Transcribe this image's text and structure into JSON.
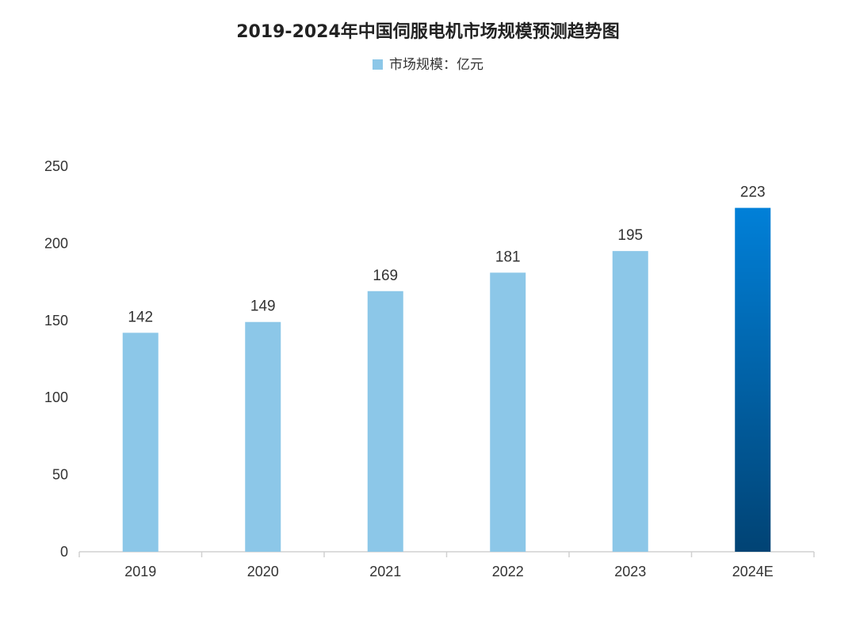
{
  "chart_data": {
    "type": "bar",
    "title": "2019-2024年中国伺服电机市场规模预测趋势图",
    "legend": [
      {
        "name": "市场规模：亿元",
        "color": "#8cc7e8"
      }
    ],
    "legend_position": "top",
    "categories": [
      "2019",
      "2020",
      "2021",
      "2022",
      "2023",
      "2024E"
    ],
    "series": [
      {
        "name": "市场规模：亿元",
        "values": [
          142,
          149,
          169,
          181,
          195,
          223
        ]
      }
    ],
    "data_labels": [
      "142",
      "149",
      "169",
      "181",
      "195",
      "223"
    ],
    "ylim": [
      0,
      250
    ],
    "yticks": [
      "0",
      "50",
      "100",
      "150",
      "200",
      "250"
    ],
    "grid": false,
    "xlabel": "",
    "ylabel": "",
    "colors": {
      "bar": "#8cc7e8",
      "highlight_top": "#0180d8",
      "highlight_bottom": "#014374",
      "axis": "#d0d0d0"
    }
  }
}
